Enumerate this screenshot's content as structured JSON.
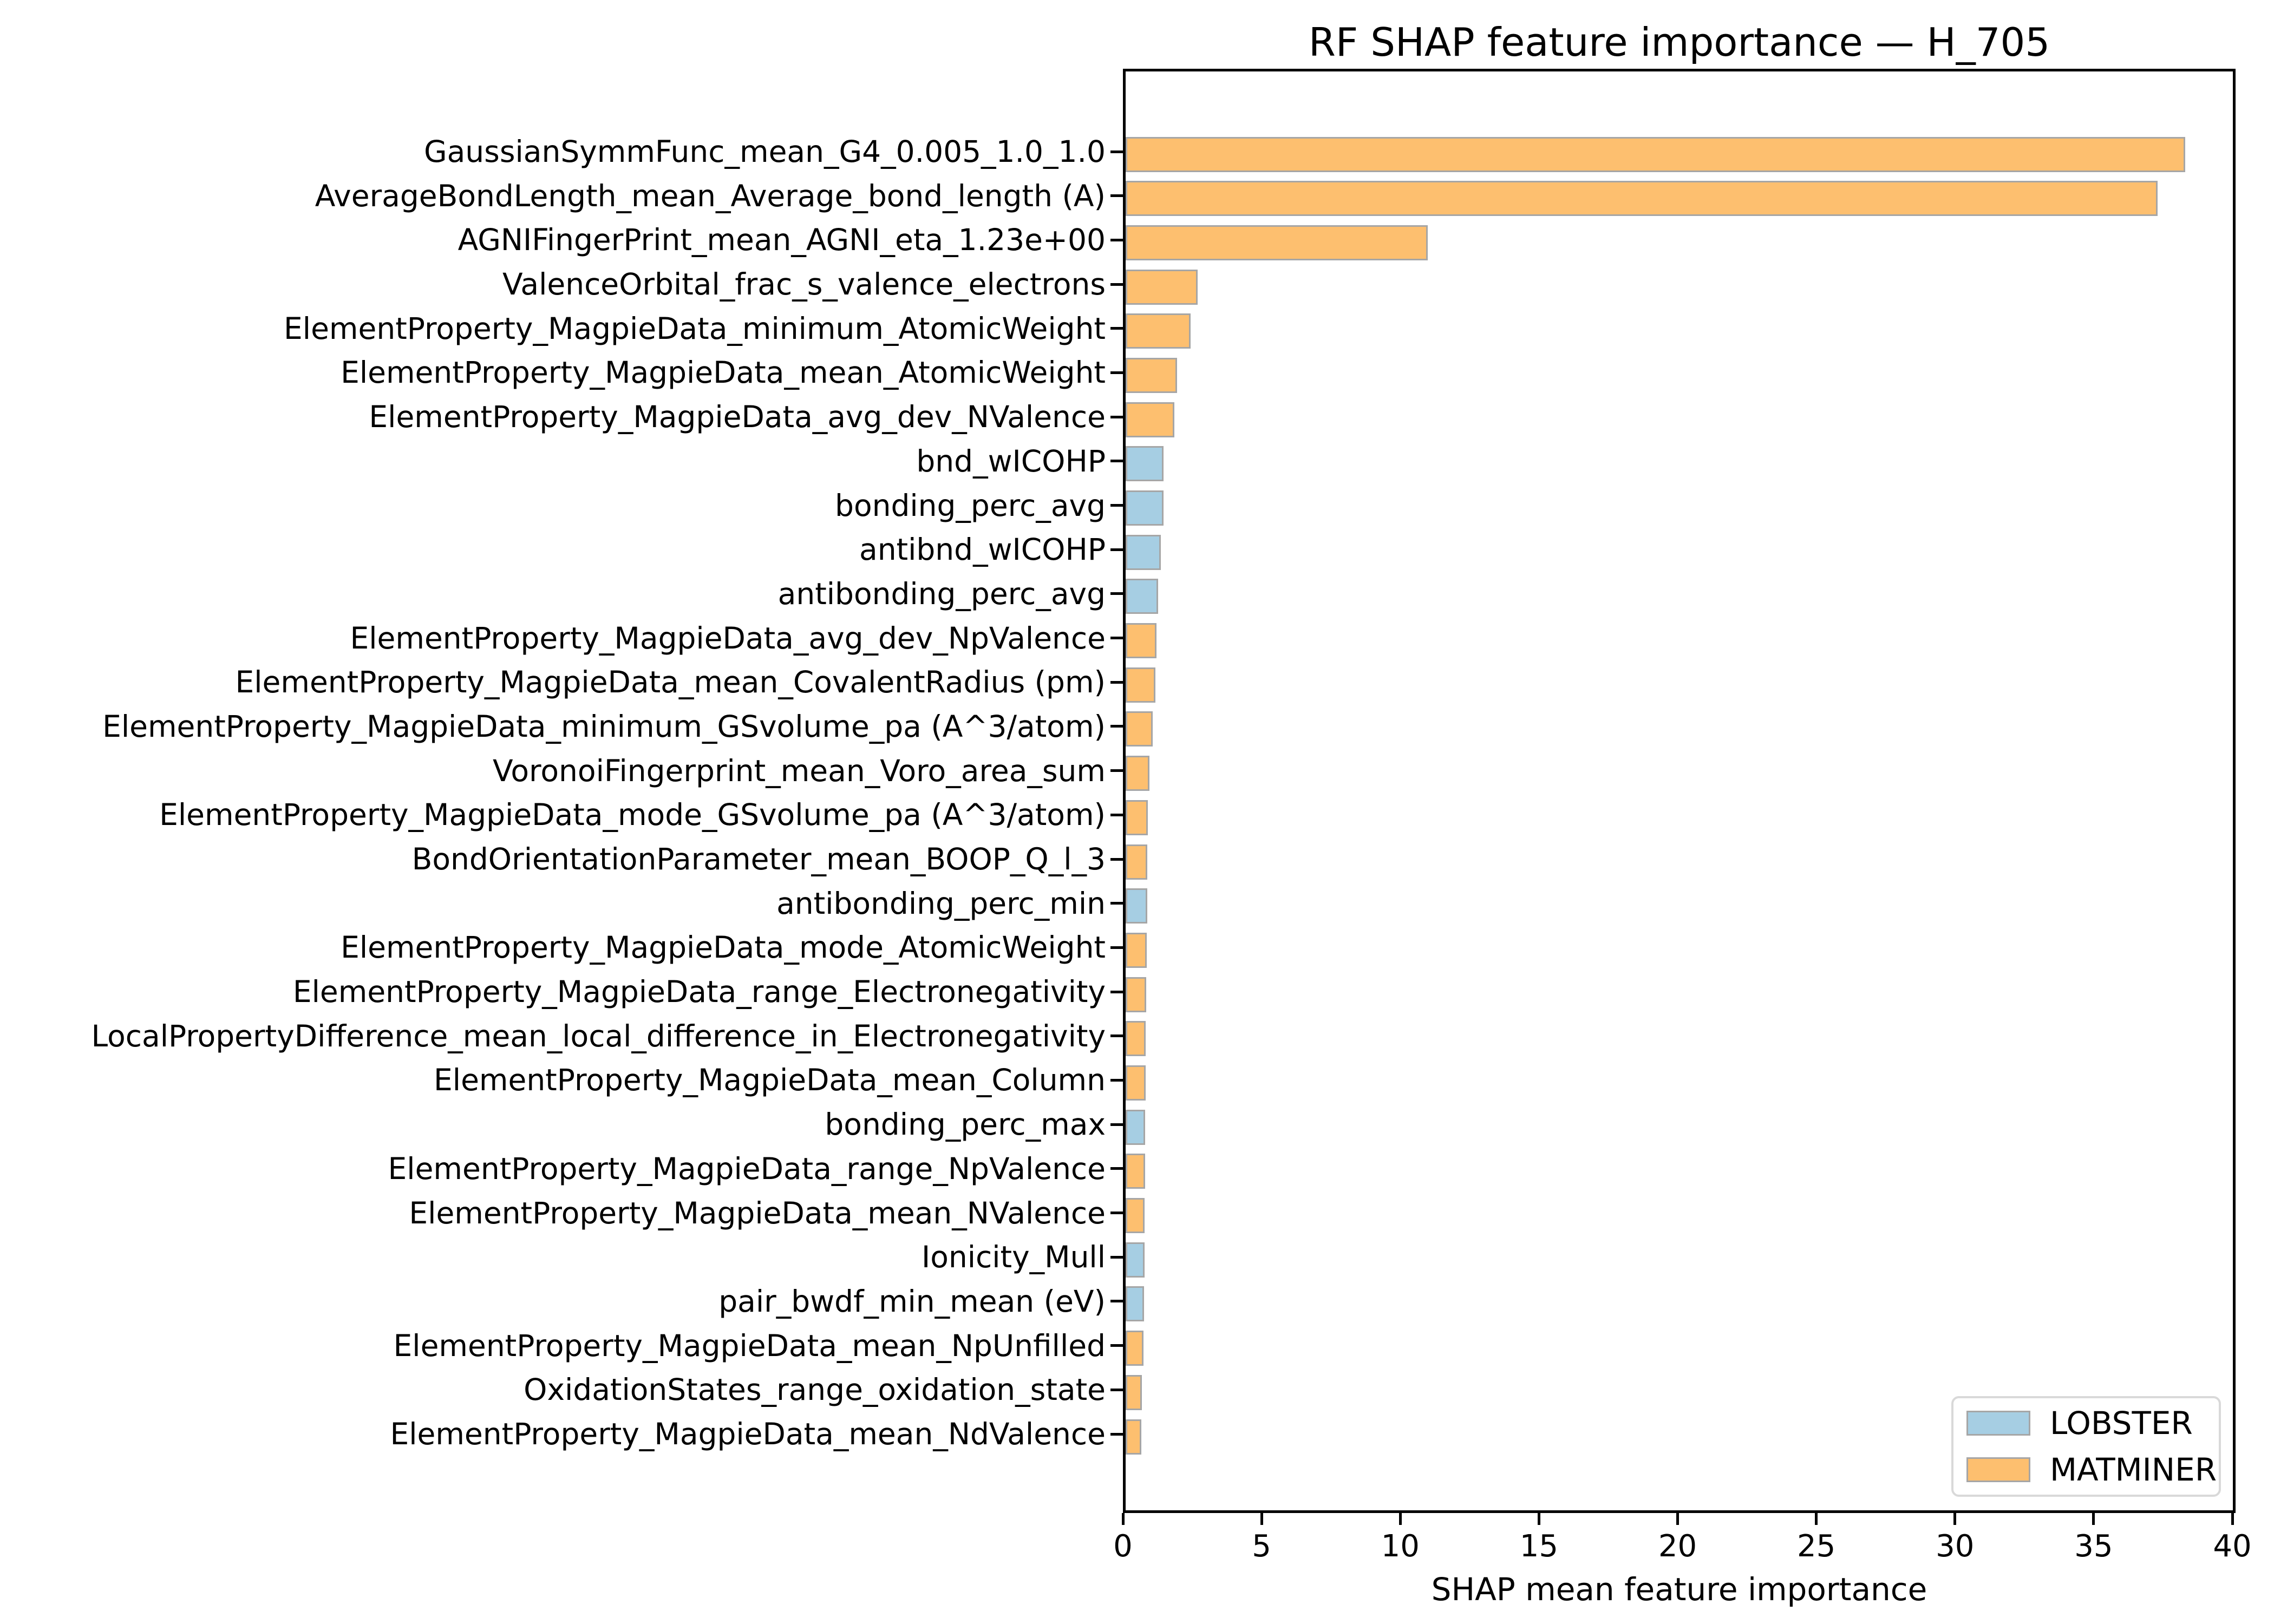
{
  "title": "RF SHAP feature importance — H_705",
  "chart_data": {
    "type": "bar",
    "orientation": "horizontal",
    "title": "RF SHAP feature importance — H_705",
    "xlabel": "SHAP mean feature importance",
    "ylabel": "",
    "xlim": [
      0,
      40.12
    ],
    "xticks": [
      0,
      5,
      10,
      15,
      20,
      25,
      30,
      35,
      40
    ],
    "grid": false,
    "background_color": "#ffffff",
    "bar_edge_color": "#a6a6a6",
    "series_colors": {
      "LOBSTER": "#A6CEE3",
      "MATMINER": "#FDBF6F"
    },
    "legend": {
      "position": "lower right",
      "entries": [
        {
          "label": "LOBSTER",
          "color": "#A6CEE3"
        },
        {
          "label": "MATMINER",
          "color": "#FDBF6F"
        }
      ]
    },
    "bars": [
      {
        "label": "GaussianSymmFunc_mean_G4_0.005_1.0_1.0",
        "value": 38.2,
        "series": "MATMINER"
      },
      {
        "label": "AverageBondLength_mean_Average_bond_length (A)",
        "value": 37.2,
        "series": "MATMINER"
      },
      {
        "label": "AGNIFingerPrint_mean_AGNI_eta_1.23e+00",
        "value": 10.9,
        "series": "MATMINER"
      },
      {
        "label": "ValenceOrbital_frac_s_valence_electrons",
        "value": 2.6,
        "series": "MATMINER"
      },
      {
        "label": "ElementProperty_MagpieData_minimum_AtomicWeight",
        "value": 2.35,
        "series": "MATMINER"
      },
      {
        "label": "ElementProperty_MagpieData_mean_AtomicWeight",
        "value": 1.85,
        "series": "MATMINER"
      },
      {
        "label": "ElementProperty_MagpieData_avg_dev_NValence",
        "value": 1.75,
        "series": "MATMINER"
      },
      {
        "label": "bnd_wICOHP",
        "value": 1.37,
        "series": "LOBSTER"
      },
      {
        "label": "bonding_perc_avg",
        "value": 1.36,
        "series": "LOBSTER"
      },
      {
        "label": "antibnd_wICOHP",
        "value": 1.27,
        "series": "LOBSTER"
      },
      {
        "label": "antibonding_perc_avg",
        "value": 1.17,
        "series": "LOBSTER"
      },
      {
        "label": "ElementProperty_MagpieData_avg_dev_NpValence",
        "value": 1.12,
        "series": "MATMINER"
      },
      {
        "label": "ElementProperty_MagpieData_mean_CovalentRadius (pm)",
        "value": 1.07,
        "series": "MATMINER"
      },
      {
        "label": "ElementProperty_MagpieData_minimum_GSvolume_pa (A^3/atom)",
        "value": 0.97,
        "series": "MATMINER"
      },
      {
        "label": "VoronoiFingerprint_mean_Voro_area_sum",
        "value": 0.86,
        "series": "MATMINER"
      },
      {
        "label": "ElementProperty_MagpieData_mode_GSvolume_pa (A^3/atom)",
        "value": 0.8,
        "series": "MATMINER"
      },
      {
        "label": "BondOrientationParameter_mean_BOOP_Q_l_3",
        "value": 0.79,
        "series": "MATMINER"
      },
      {
        "label": "antibonding_perc_min",
        "value": 0.78,
        "series": "LOBSTER"
      },
      {
        "label": "ElementProperty_MagpieData_mode_AtomicWeight",
        "value": 0.76,
        "series": "MATMINER"
      },
      {
        "label": "ElementProperty_MagpieData_range_Electronegativity",
        "value": 0.74,
        "series": "MATMINER"
      },
      {
        "label": "LocalPropertyDifference_mean_local_difference_in_Electronegativity",
        "value": 0.73,
        "series": "MATMINER"
      },
      {
        "label": "ElementProperty_MagpieData_mean_Column",
        "value": 0.72,
        "series": "MATMINER"
      },
      {
        "label": "bonding_perc_max",
        "value": 0.7,
        "series": "LOBSTER"
      },
      {
        "label": "ElementProperty_MagpieData_range_NpValence",
        "value": 0.7,
        "series": "MATMINER"
      },
      {
        "label": "ElementProperty_MagpieData_mean_NValence",
        "value": 0.69,
        "series": "MATMINER"
      },
      {
        "label": "Ionicity_Mull",
        "value": 0.68,
        "series": "LOBSTER"
      },
      {
        "label": "pair_bwdf_min_mean (eV)",
        "value": 0.66,
        "series": "LOBSTER"
      },
      {
        "label": "ElementProperty_MagpieData_mean_NpUnfilled",
        "value": 0.64,
        "series": "MATMINER"
      },
      {
        "label": "OxidationStates_range_oxidation_state",
        "value": 0.59,
        "series": "MATMINER"
      },
      {
        "label": "ElementProperty_MagpieData_mean_NdValence",
        "value": 0.56,
        "series": "MATMINER"
      }
    ]
  }
}
